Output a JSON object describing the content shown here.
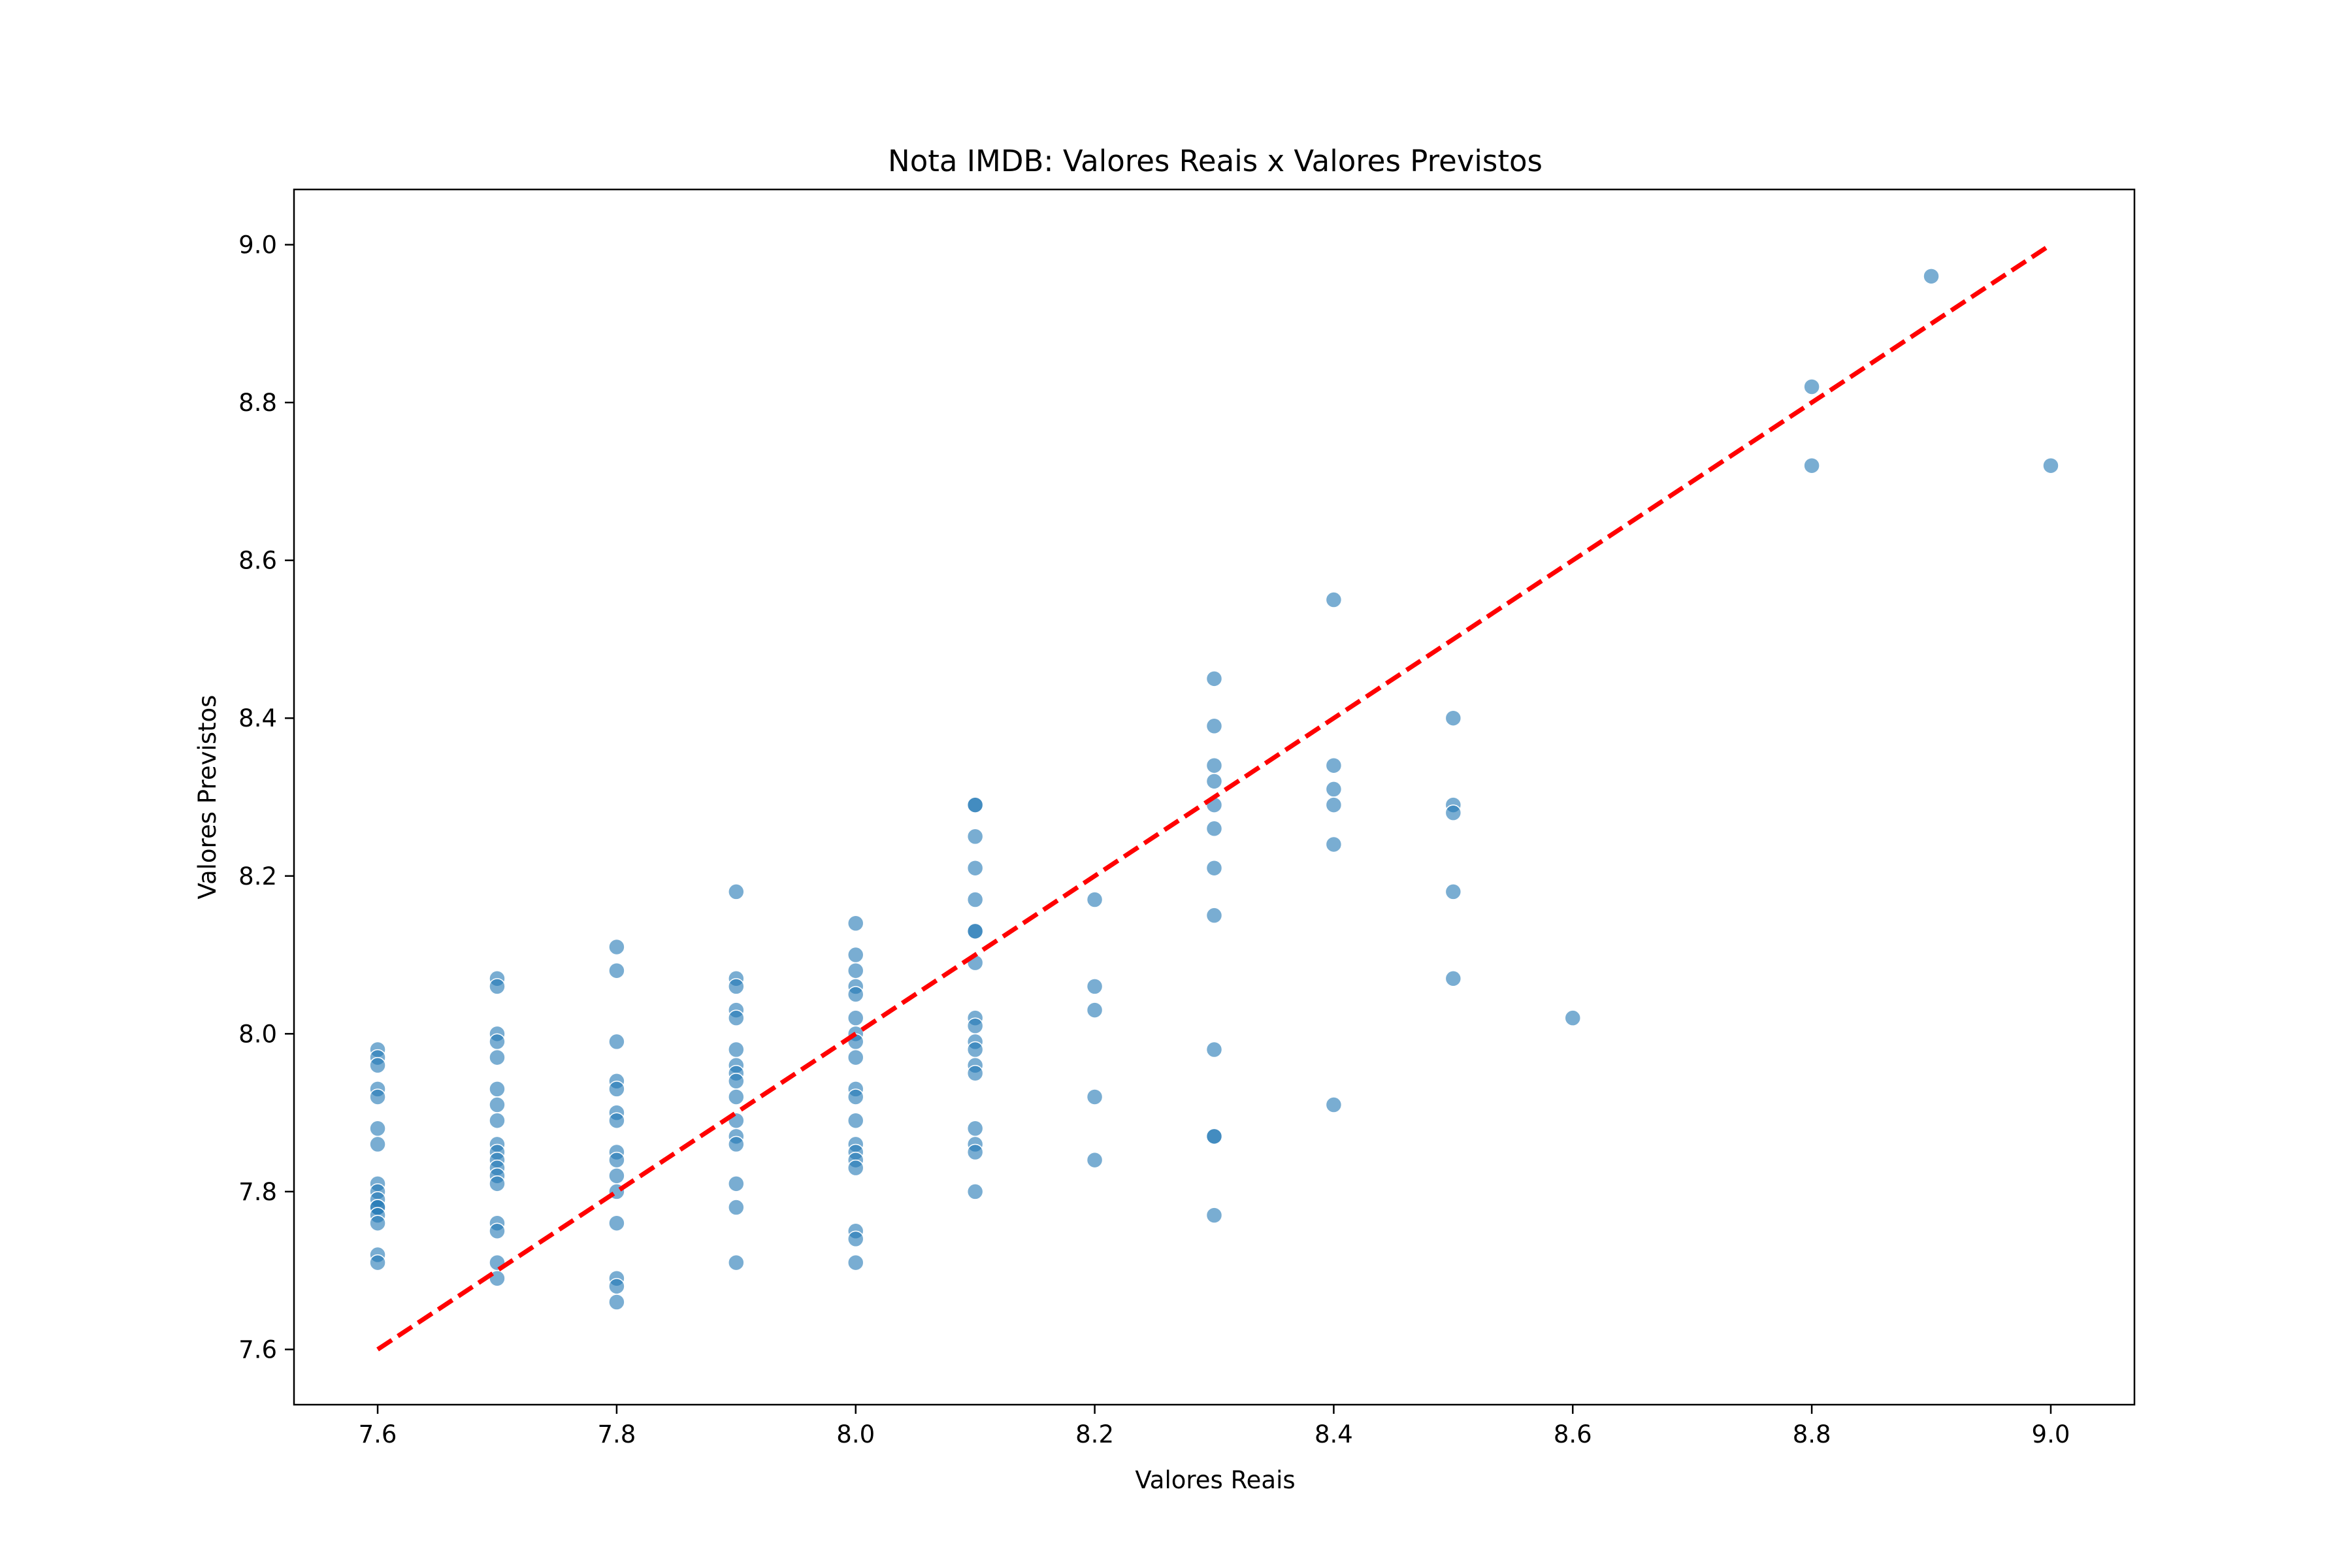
{
  "chart_data": {
    "type": "scatter",
    "title": "Nota IMDB: Valores Reais x Valores Previstos",
    "xlabel": "Valores Reais",
    "ylabel": "Valores Previstos",
    "xlim": [
      7.53,
      9.07
    ],
    "ylim": [
      7.53,
      9.07
    ],
    "xticks": [
      "7.6",
      "7.8",
      "8.0",
      "8.2",
      "8.4",
      "8.6",
      "8.8",
      "9.0"
    ],
    "yticks": [
      "7.6",
      "7.8",
      "8.0",
      "8.2",
      "8.4",
      "8.6",
      "8.8",
      "9.0"
    ],
    "grid": false,
    "colors": {
      "points": "#1f77b4",
      "reference_line": "#ff0000"
    },
    "reference_line": {
      "from": [
        7.6,
        7.6
      ],
      "to": [
        9.0,
        9.0
      ],
      "style": "dashed"
    },
    "series": [
      {
        "points": [
          [
            7.6,
            7.98
          ],
          [
            7.6,
            7.97
          ],
          [
            7.6,
            7.96
          ],
          [
            7.6,
            7.93
          ],
          [
            7.6,
            7.92
          ],
          [
            7.6,
            7.88
          ],
          [
            7.6,
            7.86
          ],
          [
            7.6,
            7.81
          ],
          [
            7.6,
            7.8
          ],
          [
            7.6,
            7.79
          ],
          [
            7.6,
            7.78
          ],
          [
            7.6,
            7.78
          ],
          [
            7.6,
            7.77
          ],
          [
            7.6,
            7.76
          ],
          [
            7.6,
            7.72
          ],
          [
            7.6,
            7.71
          ],
          [
            7.7,
            8.07
          ],
          [
            7.7,
            8.06
          ],
          [
            7.7,
            8.0
          ],
          [
            7.7,
            7.99
          ],
          [
            7.7,
            7.97
          ],
          [
            7.7,
            7.93
          ],
          [
            7.7,
            7.91
          ],
          [
            7.7,
            7.89
          ],
          [
            7.7,
            7.86
          ],
          [
            7.7,
            7.85
          ],
          [
            7.7,
            7.84
          ],
          [
            7.7,
            7.83
          ],
          [
            7.7,
            7.82
          ],
          [
            7.7,
            7.81
          ],
          [
            7.7,
            7.76
          ],
          [
            7.7,
            7.75
          ],
          [
            7.7,
            7.71
          ],
          [
            7.7,
            7.69
          ],
          [
            7.8,
            8.11
          ],
          [
            7.8,
            8.08
          ],
          [
            7.8,
            7.99
          ],
          [
            7.8,
            7.94
          ],
          [
            7.8,
            7.93
          ],
          [
            7.8,
            7.9
          ],
          [
            7.8,
            7.89
          ],
          [
            7.8,
            7.85
          ],
          [
            7.8,
            7.84
          ],
          [
            7.8,
            7.82
          ],
          [
            7.8,
            7.8
          ],
          [
            7.8,
            7.76
          ],
          [
            7.8,
            7.69
          ],
          [
            7.8,
            7.68
          ],
          [
            7.8,
            7.66
          ],
          [
            7.9,
            8.18
          ],
          [
            7.9,
            8.07
          ],
          [
            7.9,
            8.06
          ],
          [
            7.9,
            8.03
          ],
          [
            7.9,
            8.02
          ],
          [
            7.9,
            7.98
          ],
          [
            7.9,
            7.96
          ],
          [
            7.9,
            7.95
          ],
          [
            7.9,
            7.94
          ],
          [
            7.9,
            7.92
          ],
          [
            7.9,
            7.89
          ],
          [
            7.9,
            7.87
          ],
          [
            7.9,
            7.86
          ],
          [
            7.9,
            7.81
          ],
          [
            7.9,
            7.78
          ],
          [
            7.9,
            7.71
          ],
          [
            8.0,
            8.14
          ],
          [
            8.0,
            8.1
          ],
          [
            8.0,
            8.08
          ],
          [
            8.0,
            8.06
          ],
          [
            8.0,
            8.05
          ],
          [
            8.0,
            8.02
          ],
          [
            8.0,
            8.0
          ],
          [
            8.0,
            7.99
          ],
          [
            8.0,
            7.97
          ],
          [
            8.0,
            7.93
          ],
          [
            8.0,
            7.92
          ],
          [
            8.0,
            7.89
          ],
          [
            8.0,
            7.86
          ],
          [
            8.0,
            7.85
          ],
          [
            8.0,
            7.84
          ],
          [
            8.0,
            7.83
          ],
          [
            8.0,
            7.75
          ],
          [
            8.0,
            7.74
          ],
          [
            8.0,
            7.71
          ],
          [
            8.1,
            8.29
          ],
          [
            8.1,
            8.29
          ],
          [
            8.1,
            8.25
          ],
          [
            8.1,
            8.21
          ],
          [
            8.1,
            8.17
          ],
          [
            8.1,
            8.13
          ],
          [
            8.1,
            8.13
          ],
          [
            8.1,
            8.09
          ],
          [
            8.1,
            8.02
          ],
          [
            8.1,
            8.01
          ],
          [
            8.1,
            7.99
          ],
          [
            8.1,
            7.98
          ],
          [
            8.1,
            7.96
          ],
          [
            8.1,
            7.95
          ],
          [
            8.1,
            7.88
          ],
          [
            8.1,
            7.86
          ],
          [
            8.1,
            7.85
          ],
          [
            8.1,
            7.8
          ],
          [
            8.2,
            8.17
          ],
          [
            8.2,
            8.06
          ],
          [
            8.2,
            8.03
          ],
          [
            8.2,
            7.92
          ],
          [
            8.2,
            7.84
          ],
          [
            8.3,
            8.45
          ],
          [
            8.3,
            8.39
          ],
          [
            8.3,
            8.34
          ],
          [
            8.3,
            8.32
          ],
          [
            8.3,
            8.29
          ],
          [
            8.3,
            8.26
          ],
          [
            8.3,
            8.21
          ],
          [
            8.3,
            8.15
          ],
          [
            8.3,
            7.98
          ],
          [
            8.3,
            7.87
          ],
          [
            8.3,
            7.87
          ],
          [
            8.3,
            7.77
          ],
          [
            8.4,
            8.55
          ],
          [
            8.4,
            8.34
          ],
          [
            8.4,
            8.31
          ],
          [
            8.4,
            8.29
          ],
          [
            8.4,
            8.24
          ],
          [
            8.4,
            7.91
          ],
          [
            8.5,
            8.4
          ],
          [
            8.5,
            8.29
          ],
          [
            8.5,
            8.28
          ],
          [
            8.5,
            8.18
          ],
          [
            8.5,
            8.07
          ],
          [
            8.6,
            8.02
          ],
          [
            8.8,
            8.82
          ],
          [
            8.8,
            8.72
          ],
          [
            8.9,
            8.96
          ],
          [
            9.0,
            8.72
          ]
        ]
      }
    ]
  }
}
